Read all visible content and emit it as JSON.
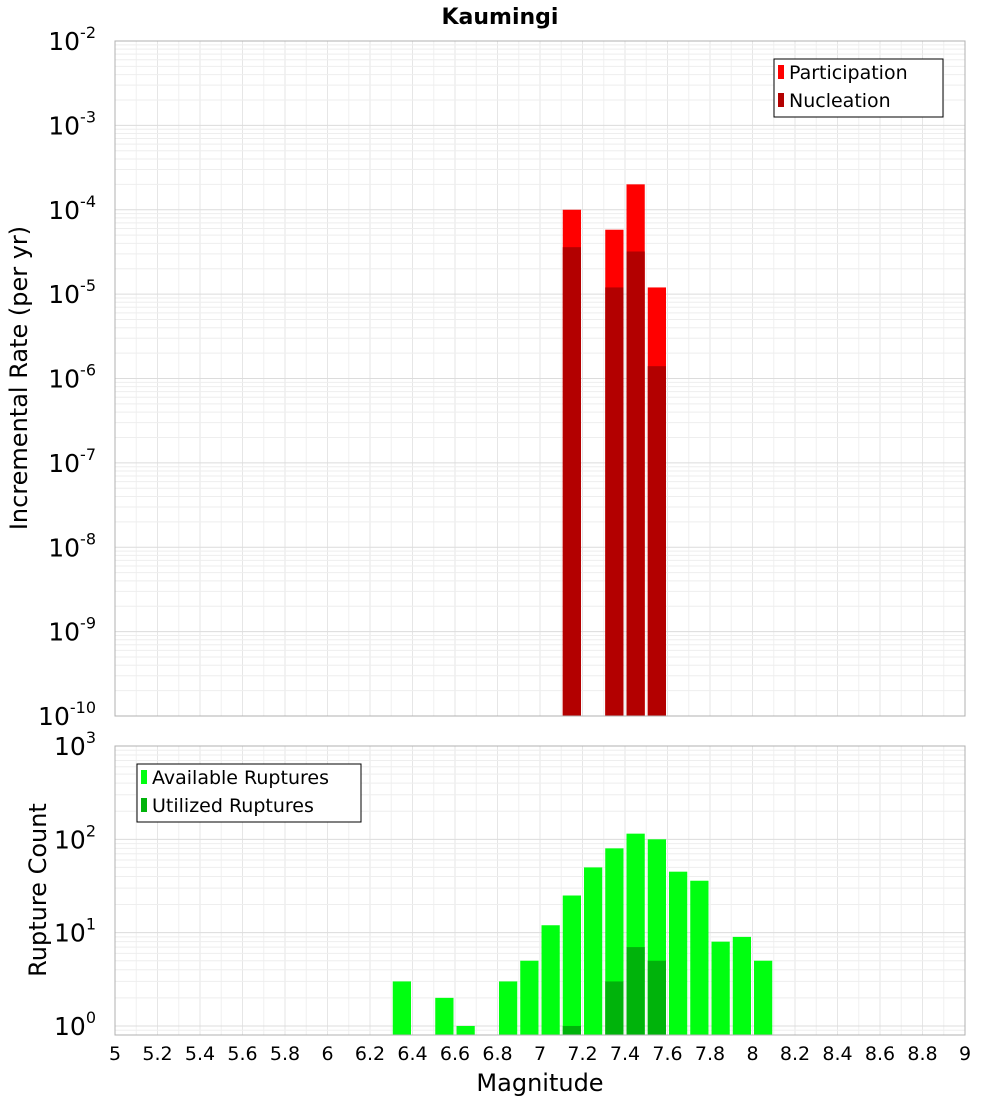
{
  "chart_data": [
    {
      "type": "bar",
      "title": "Kaumingi",
      "ylabel": "Incremental Rate (per yr)",
      "xlabel": "",
      "y_scale": "log",
      "ylim": [
        1e-10,
        0.01
      ],
      "xlim": [
        5,
        9
      ],
      "grid": true,
      "legend_position": "top-right",
      "y_ticks": [
        {
          "value": 1e-10,
          "base": "10",
          "exp": "-10"
        },
        {
          "value": 1e-09,
          "base": "10",
          "exp": "-9"
        },
        {
          "value": 1e-08,
          "base": "10",
          "exp": "-8"
        },
        {
          "value": 1e-07,
          "base": "10",
          "exp": "-7"
        },
        {
          "value": 1e-06,
          "base": "10",
          "exp": "-6"
        },
        {
          "value": 1e-05,
          "base": "10",
          "exp": "-5"
        },
        {
          "value": 0.0001,
          "base": "10",
          "exp": "-4"
        },
        {
          "value": 0.001,
          "base": "10",
          "exp": "-3"
        },
        {
          "value": 0.01,
          "base": "10",
          "exp": "-2"
        }
      ],
      "series": [
        {
          "name": "Participation",
          "color": "#ff0000",
          "points": [
            {
              "x": 7.15,
              "y": 0.0001
            },
            {
              "x": 7.35,
              "y": 5.8e-05
            },
            {
              "x": 7.45,
              "y": 0.0002
            },
            {
              "x": 7.55,
              "y": 1.2e-05
            }
          ]
        },
        {
          "name": "Nucleation",
          "color": "#b30000",
          "points": [
            {
              "x": 7.15,
              "y": 3.6e-05
            },
            {
              "x": 7.35,
              "y": 1.2e-05
            },
            {
              "x": 7.45,
              "y": 3.2e-05
            },
            {
              "x": 7.55,
              "y": 1.4e-06
            }
          ]
        }
      ]
    },
    {
      "type": "bar",
      "title": "",
      "ylabel": "Rupture Count",
      "xlabel": "Magnitude",
      "y_scale": "log",
      "ylim": [
        0.8,
        1000
      ],
      "xlim": [
        5,
        9
      ],
      "grid": true,
      "legend_position": "top-left",
      "x_ticks": [
        "5",
        "5.2",
        "5.4",
        "5.6",
        "5.8",
        "6",
        "6.2",
        "6.4",
        "6.6",
        "6.8",
        "7",
        "7.2",
        "7.4",
        "7.6",
        "7.8",
        "8",
        "8.2",
        "8.4",
        "8.6",
        "8.8",
        "9"
      ],
      "y_ticks": [
        {
          "value": 1,
          "base": "10",
          "exp": "0"
        },
        {
          "value": 10,
          "base": "10",
          "exp": "1"
        },
        {
          "value": 100,
          "base": "10",
          "exp": "2"
        },
        {
          "value": 1000,
          "base": "10",
          "exp": "3"
        }
      ],
      "series": [
        {
          "name": "Available Ruptures",
          "color": "#00ff10",
          "points": [
            {
              "x": 6.35,
              "y": 3
            },
            {
              "x": 6.55,
              "y": 2
            },
            {
              "x": 6.65,
              "y": 1
            },
            {
              "x": 6.85,
              "y": 3
            },
            {
              "x": 6.95,
              "y": 5
            },
            {
              "x": 7.05,
              "y": 12
            },
            {
              "x": 7.15,
              "y": 25
            },
            {
              "x": 7.25,
              "y": 50
            },
            {
              "x": 7.35,
              "y": 80
            },
            {
              "x": 7.45,
              "y": 115
            },
            {
              "x": 7.55,
              "y": 100
            },
            {
              "x": 7.65,
              "y": 45
            },
            {
              "x": 7.75,
              "y": 36
            },
            {
              "x": 7.85,
              "y": 8
            },
            {
              "x": 7.95,
              "y": 9
            },
            {
              "x": 8.05,
              "y": 5
            }
          ]
        },
        {
          "name": "Utilized Ruptures",
          "color": "#00b30b",
          "points": [
            {
              "x": 7.15,
              "y": 1
            },
            {
              "x": 7.35,
              "y": 3
            },
            {
              "x": 7.45,
              "y": 7
            },
            {
              "x": 7.55,
              "y": 5
            }
          ]
        }
      ]
    }
  ]
}
